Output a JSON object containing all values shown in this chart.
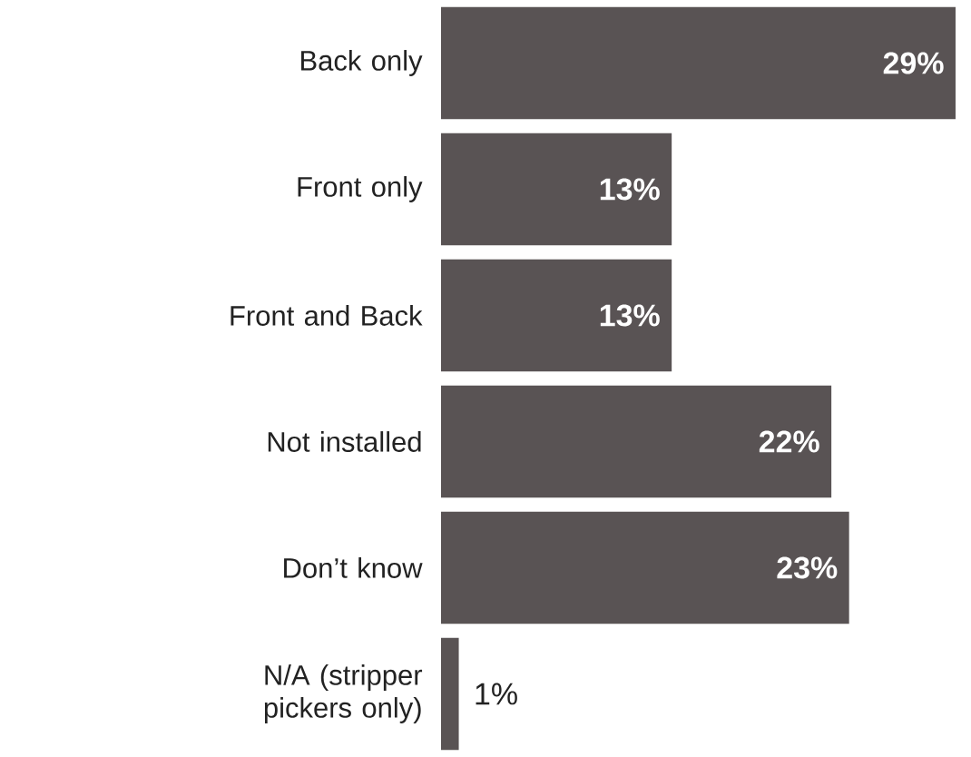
{
  "chart_data": {
    "type": "bar",
    "orientation": "horizontal",
    "categories": [
      "Back only",
      "Front only",
      "Front and Back",
      "Not installed",
      "Don’t know",
      "N/A (stripper pickers only)"
    ],
    "values": [
      29,
      13,
      13,
      22,
      23,
      1
    ],
    "value_labels": [
      "29%",
      "13%",
      "13%",
      "22%",
      "23%",
      "1%"
    ],
    "color": "#595354"
  }
}
